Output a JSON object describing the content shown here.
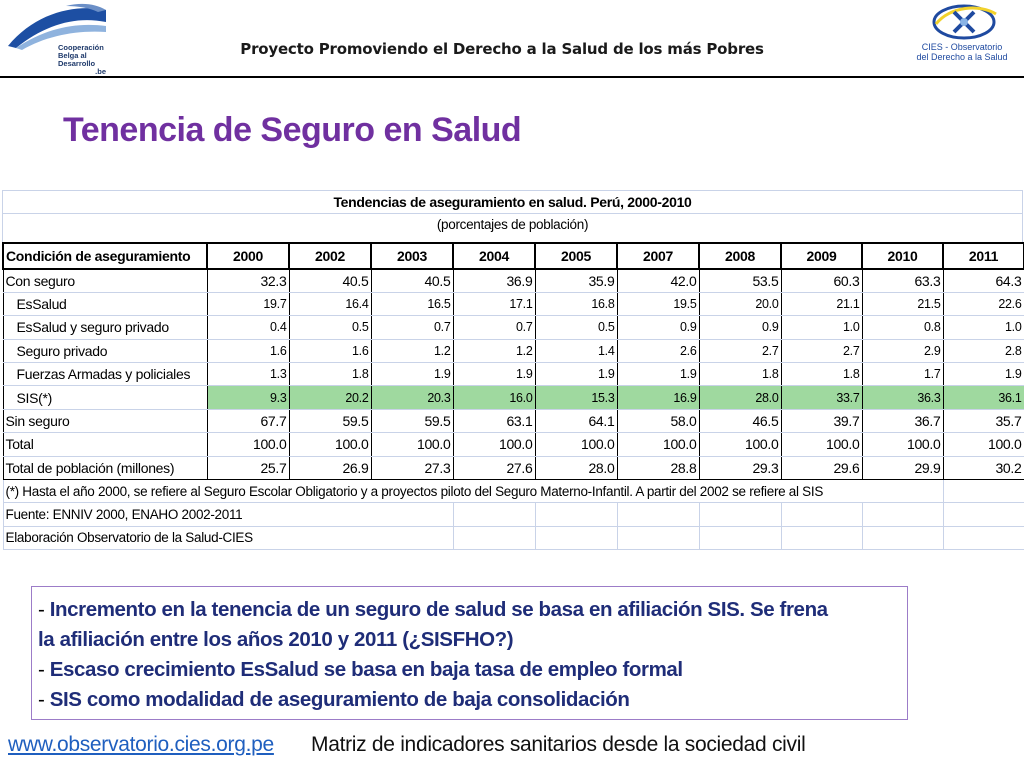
{
  "header": {
    "title": "Proyecto Promoviendo el Derecho a la Salud de los más Pobres",
    "left_logo": {
      "line1": "Cooperación",
      "line2": "Belga al Desarrollo",
      "line3": ".be"
    },
    "right_logo": {
      "line1": "CIES - Observatorio",
      "line2": "del Derecho a la Salud"
    }
  },
  "slide_title": "Tenencia de Seguro en Salud",
  "table": {
    "caption": "Tendencias de aseguramiento en salud. Perú, 2000-2010",
    "subcaption": "(porcentajes de población)",
    "columns": [
      "Condición de aseguramiento",
      "2000",
      "2002",
      "2003",
      "2004",
      "2005",
      "2007",
      "2008",
      "2009",
      "2010",
      "2011"
    ],
    "rows": [
      {
        "label": "Con seguro",
        "values": [
          "32.3",
          "40.5",
          "40.5",
          "36.9",
          "35.9",
          "42.0",
          "53.5",
          "60.3",
          "63.3",
          "64.3"
        ]
      },
      {
        "label": "EsSalud",
        "values": [
          "19.7",
          "16.4",
          "16.5",
          "17.1",
          "16.8",
          "19.5",
          "20.0",
          "21.1",
          "21.5",
          "22.6"
        ]
      },
      {
        "label": "EsSalud y seguro privado",
        "values": [
          "0.4",
          "0.5",
          "0.7",
          "0.7",
          "0.5",
          "0.9",
          "0.9",
          "1.0",
          "0.8",
          "1.0"
        ]
      },
      {
        "label": "Seguro privado",
        "values": [
          "1.6",
          "1.6",
          "1.2",
          "1.2",
          "1.4",
          "2.6",
          "2.7",
          "2.7",
          "2.9",
          "2.8"
        ]
      },
      {
        "label": "Fuerzas Armadas y policiales",
        "values": [
          "1.3",
          "1.8",
          "1.9",
          "1.9",
          "1.9",
          "1.9",
          "1.8",
          "1.8",
          "1.7",
          "1.9"
        ]
      },
      {
        "label": "SIS(*)",
        "values": [
          "9.3",
          "20.2",
          "20.3",
          "16.0",
          "15.3",
          "16.9",
          "28.0",
          "33.7",
          "36.3",
          "36.1"
        ]
      },
      {
        "label": "Sin seguro",
        "values": [
          "67.7",
          "59.5",
          "59.5",
          "63.1",
          "64.1",
          "58.0",
          "46.5",
          "39.7",
          "36.7",
          "35.7"
        ]
      },
      {
        "label": "Total",
        "values": [
          "100.0",
          "100.0",
          "100.0",
          "100.0",
          "100.0",
          "100.0",
          "100.0",
          "100.0",
          "100.0",
          "100.0"
        ]
      },
      {
        "label": "Total de población (millones)",
        "values": [
          "25.7",
          "26.9",
          "27.3",
          "27.6",
          "28.0",
          "28.8",
          "29.3",
          "29.6",
          "29.9",
          "30.2"
        ]
      }
    ],
    "notes": [
      "(*) Hasta el año 2000, se refiere al Seguro Escolar Obligatorio y a proyectos piloto del Seguro Materno-Infantil. A partir del 2002 se refiere al SIS",
      "Fuente: ENNIV 2000, ENAHO 2002-2011",
      "Elaboración Observatorio de la Salud-CIES"
    ],
    "highlight_color": "#9fd99f"
  },
  "bullets": {
    "dash": "-",
    "items": [
      "Incremento en la tenencia de un seguro de salud se basa en afiliación SIS. Se frena",
      "la afiliación entre los años 2010 y 2011 (¿SISFHO?)",
      "Escaso crecimiento EsSalud se basa en baja tasa de empleo formal",
      "SIS como modalidad de aseguramiento de baja consolidación"
    ]
  },
  "footer": {
    "link": "www.observatorio.cies.org.pe",
    "text": "Matriz de indicadores sanitarios desde la sociedad civil"
  }
}
